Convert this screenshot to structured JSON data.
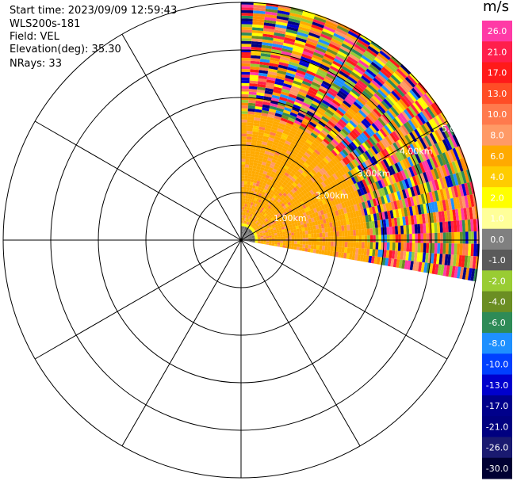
{
  "info": {
    "start_time": "Start time: 2023/09/09 12:59:43",
    "instrument": "WLS200s-181",
    "field": "Field: VEL",
    "elevation": "Elevation(deg): 35.30",
    "nrays": "NRays: 33"
  },
  "chart_data": {
    "type": "heatmap",
    "projection": "polar-ppi",
    "field": "VEL",
    "elevation_deg": 35.3,
    "n_rays": 33,
    "sector_azimuth_deg": [
      0,
      100
    ],
    "range_rings_km": [
      "1.00km",
      "2.00km",
      "3.00km",
      "4.00km",
      "5.00km"
    ],
    "colorbar": {
      "unit": "m/s",
      "ticks": [
        "26.0",
        "21.0",
        "17.0",
        "13.0",
        "10.0",
        "8.0",
        "6.0",
        "4.0",
        "2.0",
        "1.0",
        "0.0",
        "-1.0",
        "-2.0",
        "-4.0",
        "-6.0",
        "-8.0",
        "-10.0",
        "-13.0",
        "-17.0",
        "-21.0",
        "-26.0",
        "-30.0"
      ],
      "colors": [
        "#ff3aa6",
        "#ff1f4c",
        "#ff1a1a",
        "#ff4d26",
        "#ff7a4d",
        "#ff9a66",
        "#ffaa00",
        "#ffcc00",
        "#ffff00",
        "#ffff99",
        "#808080",
        "#5a5a5a",
        "#99cc33",
        "#6b8e23",
        "#2e8b57",
        "#1e90ff",
        "#0040ff",
        "#0000cd",
        "#00008b",
        "#000080",
        "#1a1a70",
        "#000033"
      ]
    },
    "regions": [
      {
        "range_km": [
          0,
          0.3
        ],
        "azimuth_deg": [
          0,
          100
        ],
        "value": 0.0
      },
      {
        "range_km": [
          0.3,
          0.35
        ],
        "azimuth_deg": [
          0,
          100
        ],
        "value": 1.5
      },
      {
        "range_km": [
          0.35,
          2.7
        ],
        "azimuth_deg": [
          0,
          100
        ],
        "value": 5.0
      },
      {
        "range_km": [
          2.7,
          5.1
        ],
        "azimuth_deg": [
          0,
          100
        ],
        "value": "mixed"
      }
    ]
  }
}
